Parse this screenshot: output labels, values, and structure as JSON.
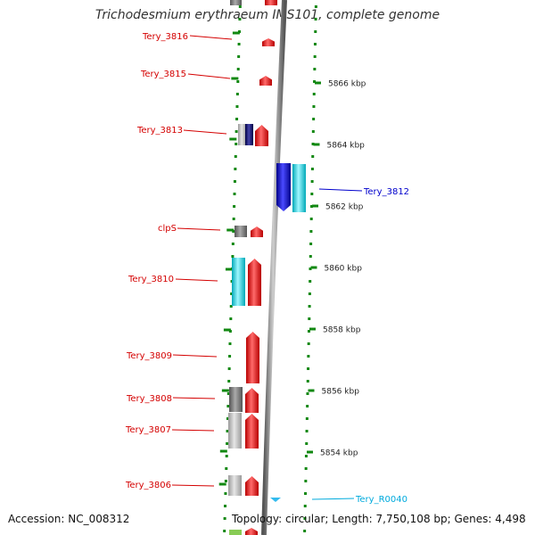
{
  "map": {
    "title": "Trichodesmium erythraeum IMS101, complete genome",
    "accession_text": "Accession: NC_008312",
    "topology_text": "Topology: circular; Length: 7,750,108 bp; Genes: 4,498"
  },
  "scale": {
    "unit": "kbp",
    "ticks": [
      {
        "kbp": 5866,
        "label": "5866 kbp"
      },
      {
        "kbp": 5864,
        "label": "5864 kbp"
      },
      {
        "kbp": 5862,
        "label": "5862 kbp"
      },
      {
        "kbp": 5860,
        "label": "5860 kbp"
      },
      {
        "kbp": 5858,
        "label": "5858 kbp"
      },
      {
        "kbp": 5856,
        "label": "5856 kbp"
      },
      {
        "kbp": 5854,
        "label": "5854 kbp"
      }
    ]
  },
  "colors": {
    "red_label": "#d40000",
    "blue_label": "#0000cc",
    "cyan_label": "#00aadd",
    "gene_red": "#ee0000",
    "gene_blue": "#0000cc",
    "gene_cyan": "#00dddd",
    "gene_gray": "#888888",
    "gene_lightgray": "#bbbbbb",
    "backbone": "#888888",
    "tick_green": "#118811"
  },
  "features": [
    {
      "label": "Tery_3816",
      "color_key": "red_label"
    },
    {
      "label": "Tery_3815",
      "color_key": "red_label"
    },
    {
      "label": "Tery_3813",
      "color_key": "red_label"
    },
    {
      "label": "clpS",
      "color_key": "red_label"
    },
    {
      "label": "Tery_3810",
      "color_key": "red_label"
    },
    {
      "label": "Tery_3809",
      "color_key": "red_label"
    },
    {
      "label": "Tery_3808",
      "color_key": "red_label"
    },
    {
      "label": "Tery_3807",
      "color_key": "red_label"
    },
    {
      "label": "Tery_3806",
      "color_key": "red_label"
    },
    {
      "label": "Tery_3812",
      "color_key": "blue_label"
    },
    {
      "label": "Tery_R0040",
      "color_key": "cyan_label"
    }
  ]
}
